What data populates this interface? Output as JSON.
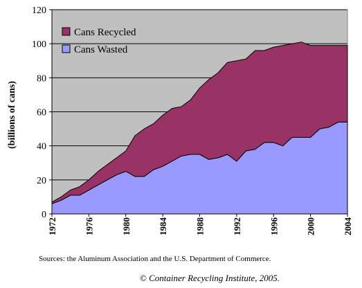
{
  "chart_data": {
    "type": "area",
    "stacked": true,
    "ylabel": "(billions of cans)",
    "ylim": [
      0,
      120
    ],
    "yticks": [
      0,
      20,
      40,
      60,
      80,
      100,
      120
    ],
    "xlim": [
      1972,
      2004
    ],
    "xticks": [
      1972,
      1976,
      1980,
      1984,
      1988,
      1992,
      1996,
      2000,
      2004
    ],
    "grid": true,
    "legend": "top-left",
    "x": [
      1972,
      1973,
      1974,
      1975,
      1976,
      1977,
      1978,
      1979,
      1980,
      1981,
      1982,
      1983,
      1984,
      1985,
      1986,
      1987,
      1988,
      1989,
      1990,
      1991,
      1992,
      1993,
      1994,
      1995,
      1996,
      1997,
      1998,
      1999,
      2000,
      2001,
      2002,
      2003,
      2004
    ],
    "series": [
      {
        "name": "Cans Wasted",
        "color": "#9999ff",
        "values": [
          6,
          8,
          11,
          11,
          14,
          17,
          20,
          23,
          25,
          22,
          22,
          26,
          28,
          31,
          34,
          35,
          35,
          32,
          33,
          35,
          31,
          37,
          38,
          42,
          42,
          40,
          45,
          45,
          45,
          50,
          51,
          54,
          54
        ]
      },
      {
        "name": "Cans Recycled",
        "color": "#993366",
        "values": [
          1,
          2,
          3,
          5,
          6,
          8,
          9,
          10,
          12,
          24,
          28,
          27,
          30,
          31,
          29,
          32,
          39,
          47,
          50,
          54,
          59,
          54,
          58,
          54,
          56,
          59,
          55,
          56,
          54,
          49,
          48,
          45,
          45
        ]
      }
    ]
  },
  "footer": {
    "source": "Sources: the Aluminum Association and the U.S. Department of Commerce.",
    "copyright_symbol": "©",
    "copyright_text": "Container Recycling Institute, 2005."
  },
  "colors": {
    "plot_bg": "#c0c0c0",
    "grid": "#000000"
  }
}
